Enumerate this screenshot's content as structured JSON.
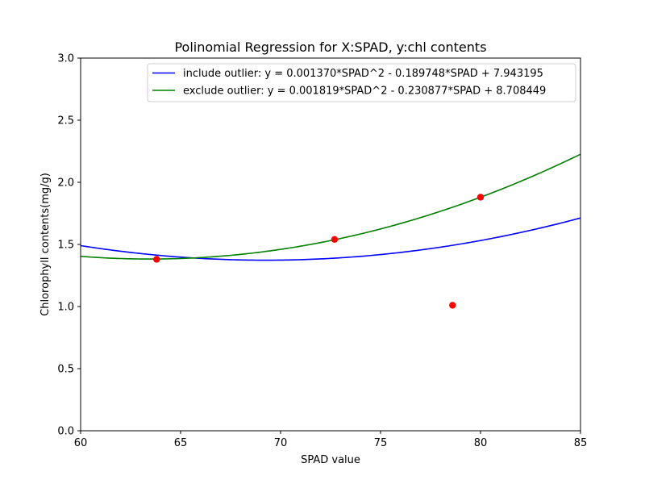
{
  "chart_data": {
    "type": "line",
    "title": "Polinomial Regression for X:SPAD, y:chl contents",
    "xlabel": "SPAD value",
    "ylabel": "Chlorophyll contents(mg/g)",
    "xlim": [
      60,
      85
    ],
    "ylim": [
      0,
      3.0
    ],
    "xticks": [
      60,
      65,
      70,
      75,
      80,
      85
    ],
    "xtick_labels": [
      "60",
      "65",
      "70",
      "75",
      "80",
      "85"
    ],
    "yticks": [
      0,
      0.5,
      1.0,
      1.5,
      2.0,
      2.5,
      3.0
    ],
    "ytick_labels": [
      "0.0",
      "0.5",
      "1.0",
      "1.5",
      "2.0",
      "2.5",
      "3.0"
    ],
    "grid": false,
    "legend_position": "top-right",
    "series": [
      {
        "name": "include outlier: y = 0.001370*SPAD^2 - 0.189748*SPAD + 7.943195",
        "kind": "polynomial",
        "coefficients": [
          0.00137,
          -0.189748,
          7.943195
        ],
        "color": "#0000ff"
      },
      {
        "name": "exclude outlier: y = 0.001819*SPAD^2 - 0.230877*SPAD + 8.708449",
        "kind": "polynomial",
        "coefficients": [
          0.001819,
          -0.230877,
          8.708449
        ],
        "color": "#008000"
      }
    ],
    "points": {
      "color": "#ff0000",
      "x": [
        63.8,
        72.7,
        78.6,
        80.0
      ],
      "y": [
        1.38,
        1.54,
        1.01,
        1.88
      ]
    }
  }
}
